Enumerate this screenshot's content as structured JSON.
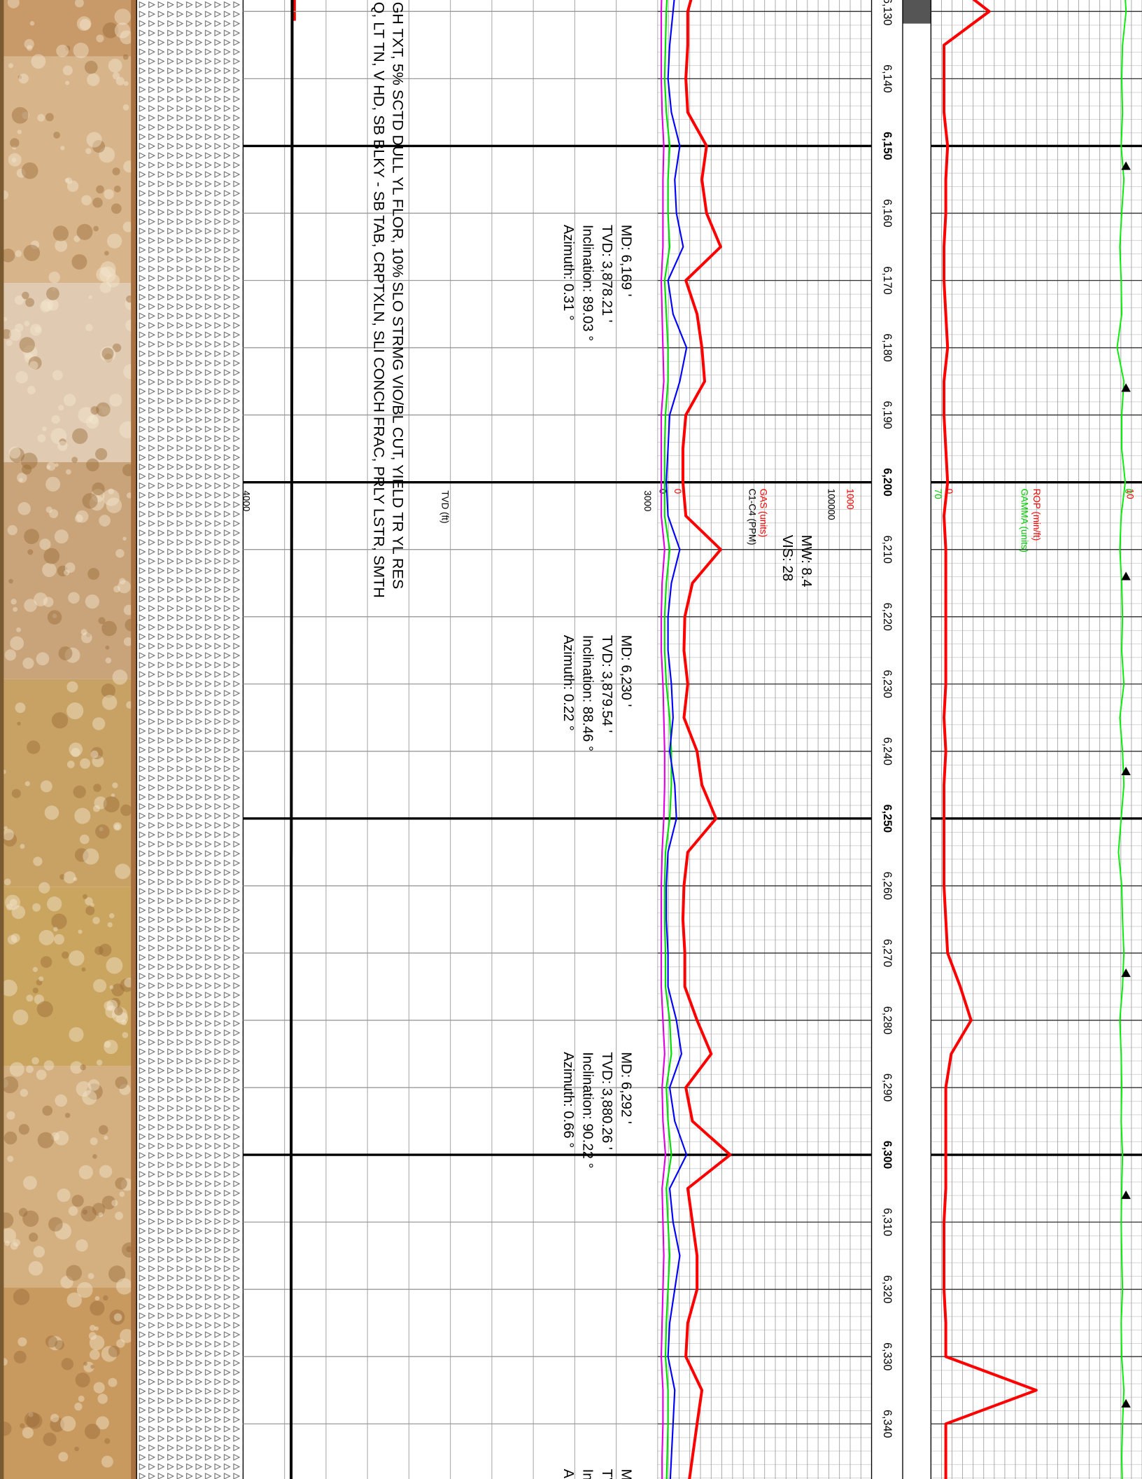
{
  "chart_data": {
    "type": "log",
    "ylim": [
      6128.3,
      6348.2
    ],
    "yticks": [
      {
        "value": 6130,
        "label": "6,130"
      },
      {
        "value": 6140,
        "label": "6,140"
      },
      {
        "value": 6150,
        "label": "6,150"
      },
      {
        "value": 6160,
        "label": "6,160"
      },
      {
        "value": 6170,
        "label": "6,170"
      },
      {
        "value": 6180,
        "label": "6,180"
      },
      {
        "value": 6190,
        "label": "6,190"
      },
      {
        "value": 6200,
        "label": "6,200"
      },
      {
        "value": 6210,
        "label": "6,210"
      },
      {
        "value": 6220,
        "label": "6,220"
      },
      {
        "value": 6230,
        "label": "6,230"
      },
      {
        "value": 6240,
        "label": "6,240"
      },
      {
        "value": 6250,
        "label": "6,250"
      },
      {
        "value": 6260,
        "label": "6,260"
      },
      {
        "value": 6270,
        "label": "6,270"
      },
      {
        "value": 6280,
        "label": "6,280"
      },
      {
        "value": 6290,
        "label": "6,290"
      },
      {
        "value": 6300,
        "label": "6,300"
      },
      {
        "value": 6310,
        "label": "6,310"
      },
      {
        "value": 6320,
        "label": "6,320"
      },
      {
        "value": 6330,
        "label": "6,330"
      },
      {
        "value": 6340,
        "label": "6,340"
      }
    ],
    "depth": [
      6125,
      6130,
      6135,
      6140,
      6145,
      6150,
      6155,
      6160,
      6165,
      6170,
      6175,
      6180,
      6185,
      6190,
      6195,
      6200,
      6205,
      6210,
      6215,
      6220,
      6225,
      6230,
      6235,
      6240,
      6245,
      6250,
      6255,
      6260,
      6265,
      6270,
      6275,
      6280,
      6285,
      6290,
      6295,
      6300,
      6305,
      6310,
      6315,
      6320,
      6325,
      6330,
      6335,
      6340,
      6345,
      6350
    ],
    "description": [
      "Q, LT TN, V HD, SB BLKY - SB TAB, CRPTXLN, SLI CONCH FRAC, PRLY LSTR, SMTH",
      "GH TXT, 5% SCTD DULL YL FLOR, 10% SLO STRMG VIO/BL CUT, YIELD TR YL RES"
    ],
    "tvd_track": {
      "xlabel": "TVD (ft)",
      "xlim": [
        3000,
        4000
      ],
      "xticks": [
        3000,
        4000
      ],
      "color": "#000000",
      "depth": [
        6125,
        6169,
        6230,
        6254,
        6256,
        6292,
        6350
      ],
      "values": [
        3877.8,
        3878.21,
        3879.54,
        3879.9,
        3880.1,
        3880.26,
        3880.4
      ]
    },
    "surveys": [
      {
        "depth": 6169,
        "lines": [
          "MD: 6,169 '",
          "TVD: 3,878.21 '",
          "Inclination: 89.03 °",
          "Azimuth: 0.31 °"
        ]
      },
      {
        "depth": 6230,
        "lines": [
          "MD: 6,230 '",
          "TVD: 3,879.54 '",
          "Inclination: 88.46 °",
          "Azimuth: 0.22 °"
        ]
      },
      {
        "depth": 6292,
        "lines": [
          "MD: 6,292 '",
          "TVD: 3,880.26 '",
          "Inclination: 90.22 °",
          "Azimuth: 0.66 °"
        ]
      },
      {
        "depth": 6354,
        "lines": [
          "MD",
          "TVD",
          "Inclination",
          "Azimuth"
        ]
      }
    ],
    "gas_track": {
      "notes": [
        "MW: 8.4",
        "VIS: 28"
      ],
      "axes": [
        {
          "name": "GAS (units)",
          "color": "#ff0000",
          "xlim": [
            0,
            1000
          ],
          "xticks": [
            0,
            1000
          ]
        },
        {
          "name": "C1-C4 (PPM)",
          "color": "#000000",
          "xlim": [
            0,
            100000
          ],
          "xticks": [
            0,
            100000
          ]
        }
      ],
      "series": [
        {
          "color": "#e000e0",
          "axis": 1,
          "values": [
            1500,
            1000,
            1000,
            1000,
            1500,
            2500,
            2000,
            2000,
            2000,
            1000,
            1500,
            2000,
            2500,
            1000,
            1000,
            1000,
            1000,
            3000,
            1500,
            1000,
            1000,
            2000,
            2500,
            3000,
            3000,
            2500,
            1500,
            1000,
            1000,
            1000,
            1000,
            2000,
            3000,
            1500,
            2000,
            3500,
            1500,
            2000,
            2500,
            2000,
            1500,
            1000,
            2000,
            2000,
            1500,
            1500
          ]
        },
        {
          "color": "#00dd00",
          "axis": 1,
          "values": [
            5000,
            4000,
            3500,
            3000,
            4000,
            6000,
            5000,
            5000,
            6000,
            3000,
            4000,
            5000,
            5000,
            3500,
            3000,
            3000,
            3000,
            6000,
            4000,
            3000,
            3000,
            4000,
            6000,
            7000,
            7000,
            6000,
            3500,
            3000,
            3000,
            3500,
            3500,
            6000,
            7000,
            4000,
            5000,
            7000,
            4000,
            5000,
            6000,
            5000,
            4000,
            3500,
            5000,
            5000,
            4500,
            4000
          ]
        },
        {
          "color": "#0000ff",
          "axis": 1,
          "values": [
            10000,
            8000,
            6000,
            5000,
            7000,
            12000,
            9000,
            10000,
            14000,
            5000,
            8000,
            16000,
            12000,
            6000,
            5000,
            4000,
            5000,
            12000,
            7000,
            5000,
            5000,
            7000,
            8000,
            6000,
            9000,
            10000,
            5000,
            4000,
            4000,
            5000,
            5000,
            10000,
            13000,
            6000,
            9000,
            16000,
            6000,
            8000,
            12000,
            9000,
            6000,
            5000,
            9000,
            8000,
            7000,
            6000
          ]
        },
        {
          "color": "#ff0000",
          "axis": 0,
          "values": [
            130,
            76,
            76,
            65,
            76,
            185,
            158,
            185,
            267,
            65,
            130,
            158,
            174,
            65,
            48,
            48,
            65,
            267,
            103,
            59,
            54,
            76,
            54,
            130,
            158,
            240,
            76,
            54,
            48,
            59,
            59,
            130,
            212,
            65,
            103,
            322,
            76,
            103,
            130,
            130,
            76,
            65,
            158,
            130,
            103,
            76
          ]
        }
      ]
    },
    "rop_track": {
      "axes": [
        {
          "name": "ROP (min/ft)",
          "color": "#ff0000",
          "xlim": [
            0,
            10
          ],
          "xticks": [
            0,
            10
          ]
        },
        {
          "name": "GAMMA (units)",
          "color": "#00cc00",
          "xlim": [
            70,
            0
          ],
          "xticks": [
            70,
            0
          ]
        }
      ],
      "series": [
        {
          "color": "#00ee00",
          "axis": 1,
          "values": [
            2.5,
            1.7,
            3,
            3.3,
            3,
            3.5,
            2.5,
            3.3,
            4,
            3.5,
            3.3,
            5,
            2.5,
            3.3,
            3.3,
            2,
            3.5,
            4,
            3.3,
            3,
            3.3,
            2.5,
            4,
            3,
            2.5,
            3.5,
            4.5,
            3.3,
            3,
            2.5,
            3,
            4,
            3.5,
            3.3,
            3.5,
            3,
            3.3,
            3.5,
            3.3,
            3,
            3.5,
            3.3,
            2.5,
            3,
            3.3,
            3
          ]
        },
        {
          "color": "#ff0000",
          "axis": 0,
          "values": [
            0.3,
            2.7,
            0.2,
            0.2,
            0.2,
            0.4,
            0.3,
            0.3,
            0.2,
            0.2,
            0.3,
            0.4,
            0.2,
            0.2,
            0.3,
            0.4,
            0.2,
            0.3,
            0.3,
            0.3,
            0.3,
            0.3,
            0.2,
            0.3,
            0.2,
            0.2,
            0.2,
            0.2,
            0.3,
            0.4,
            1.1,
            1.7,
            0.6,
            0.3,
            0.3,
            0.3,
            0.3,
            0.2,
            0.2,
            0.2,
            0.3,
            0.3,
            5.3,
            0.3,
            0.3,
            0.3
          ]
        }
      ],
      "markers": [
        6153,
        6186,
        6214,
        6243,
        6273,
        6306,
        6337
      ]
    }
  }
}
